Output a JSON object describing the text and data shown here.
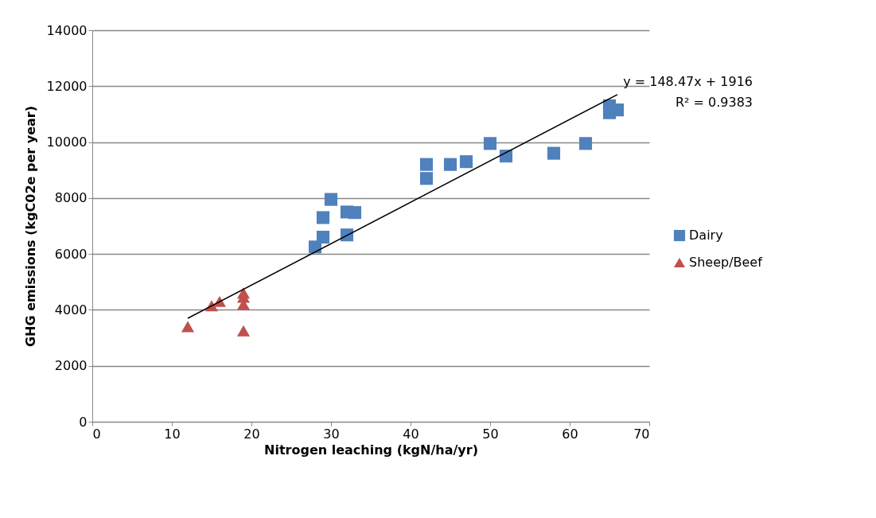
{
  "chart_data": {
    "type": "scatter",
    "xlabel": "Nitrogen leaching (kgN/ha/yr)",
    "ylabel": "GHG emissions (kgC02e per year)",
    "xlim": [
      0,
      70
    ],
    "xticks": [
      0,
      10,
      20,
      30,
      40,
      50,
      60,
      70
    ],
    "ylim": [
      0,
      14000
    ],
    "yticks": [
      0,
      2000,
      4000,
      6000,
      8000,
      10000,
      12000,
      14000
    ],
    "grid": "y",
    "legend": "right",
    "series": [
      {
        "name": "Dairy",
        "color": "#4f81bd",
        "marker": "square",
        "x": [
          28,
          29,
          29,
          30,
          32,
          32,
          33,
          42,
          42,
          45,
          47,
          50,
          52,
          58,
          62,
          65,
          65,
          66
        ],
        "values": [
          6250,
          6600,
          7300,
          7950,
          7500,
          6680,
          7480,
          8700,
          9200,
          9200,
          9300,
          9950,
          9500,
          9600,
          9950,
          11300,
          11050,
          11150
        ]
      },
      {
        "name": "Sheep/Beef",
        "color": "#c0504d",
        "marker": "triangle",
        "x": [
          12,
          15,
          16,
          19,
          19,
          19,
          19
        ],
        "values": [
          3400,
          4150,
          4300,
          4600,
          4450,
          4200,
          3250
        ]
      },
      {
        "type": "line",
        "color": "#000000",
        "x": [
          12,
          66
        ],
        "values": [
          3700,
          11700
        ]
      }
    ],
    "annotations": [
      "y = 148.47x + 1916",
      "R² = 0.9383"
    ]
  }
}
